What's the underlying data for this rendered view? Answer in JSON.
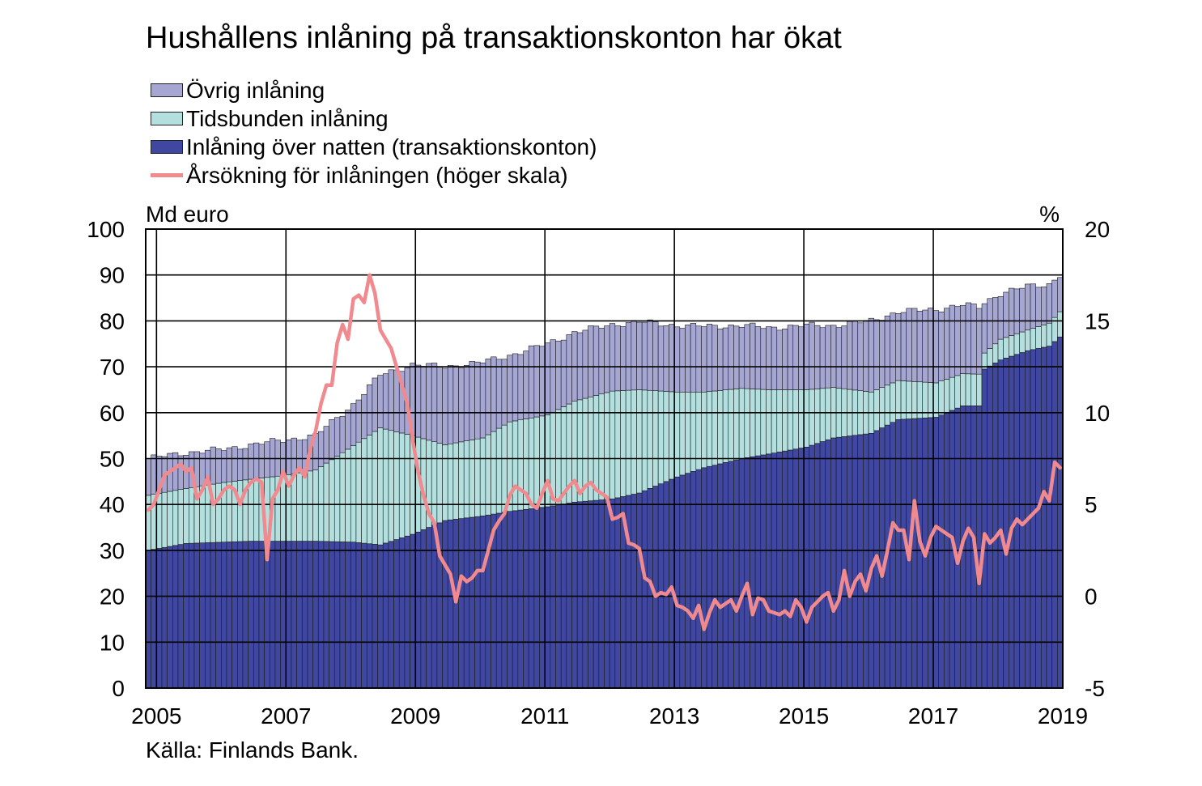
{
  "title": "Hushållens inlåning på transaktionskonton har ökat",
  "source": "Källa: Finlands Bank.",
  "legend": [
    {
      "label": "Övrig inlåning",
      "kind": "bar",
      "color": "#a6a6d2"
    },
    {
      "label": "Tidsbunden inlåning",
      "kind": "bar",
      "color": "#b3e0de"
    },
    {
      "label": "Inlåning över natten (transaktionskonton)",
      "kind": "bar",
      "color": "#3f47a0"
    },
    {
      "label": "Årsökning för inlåningen (höger skala)",
      "kind": "line",
      "color": "#f08a8f"
    }
  ],
  "chart_data": {
    "type": "bar",
    "stacked": true,
    "left_axis": {
      "unit_label": "Md euro",
      "ylim": [
        0,
        100
      ],
      "ticks": [
        "0",
        "10",
        "20",
        "30",
        "40",
        "50",
        "60",
        "70",
        "80",
        "90",
        "100"
      ]
    },
    "right_axis": {
      "unit_label": "%",
      "ylim": [
        -5,
        20
      ],
      "ticks": [
        "-5",
        "0",
        "5",
        "10",
        "15",
        "20"
      ]
    },
    "x_axis": {
      "start": "2004-11",
      "end": "2018-12",
      "tick_labels": [
        "2005",
        "2007",
        "2009",
        "2011",
        "2013",
        "2015",
        "2017",
        "2019"
      ]
    },
    "grid": true,
    "bar_anchors": {
      "months": [
        "2004-11",
        "2005-06",
        "2006-01",
        "2006-06",
        "2006-12",
        "2007-06",
        "2008-01",
        "2008-06",
        "2008-12",
        "2009-06",
        "2010-01",
        "2010-06",
        "2011-01",
        "2011-06",
        "2012-01",
        "2012-06",
        "2013-01",
        "2013-06",
        "2014-01",
        "2014-06",
        "2015-01",
        "2015-06",
        "2016-01",
        "2016-06",
        "2017-01",
        "2017-06",
        "2017-09",
        "2017-10",
        "2018-01",
        "2018-06",
        "2018-10",
        "2018-12"
      ],
      "overnight": [
        30,
        31.5,
        31.8,
        32,
        32,
        32,
        31.8,
        31.2,
        33.5,
        36.5,
        37.5,
        38.5,
        39.5,
        40.5,
        41.2,
        42.5,
        46,
        48,
        50,
        51,
        52.5,
        54.5,
        55.5,
        58.5,
        59,
        61.5,
        61.5,
        69.5,
        71.5,
        73.5,
        74.5,
        76.5
      ],
      "time_deposits": [
        12,
        12,
        13,
        13.5,
        14.3,
        15.5,
        21,
        25.5,
        21.5,
        16.5,
        17,
        19.5,
        20,
        22,
        23.5,
        22.5,
        18.5,
        16.5,
        15.3,
        14,
        12.5,
        11,
        9,
        8.5,
        7.5,
        7,
        6.9,
        3.5,
        4.5,
        4.5,
        5,
        5.5
      ],
      "other": [
        8,
        7.8,
        7.2,
        7.5,
        7.7,
        7.5,
        9,
        11.5,
        15.5,
        17,
        16.5,
        14.5,
        15.5,
        15,
        14.5,
        14.8,
        14.5,
        14.3,
        13.7,
        13.5,
        14,
        13.5,
        15.5,
        15,
        16,
        15,
        14.6,
        11,
        10,
        9.5,
        8.5,
        8
      ]
    },
    "series": [
      {
        "name": "Inlåning över natten (transaktionskonton)",
        "kind": "bar",
        "axis": "left"
      },
      {
        "name": "Tidsbunden inlåning",
        "kind": "bar",
        "axis": "left"
      },
      {
        "name": "Övrig inlåning",
        "kind": "bar",
        "axis": "left"
      },
      {
        "name": "Årsökning för inlåningen (höger skala)",
        "kind": "line",
        "axis": "right",
        "points": [
          [
            "2004-11",
            4.7
          ],
          [
            "2004-12",
            5.0
          ],
          [
            "2005-01",
            5.8
          ],
          [
            "2005-02",
            6.6
          ],
          [
            "2005-03",
            6.8
          ],
          [
            "2005-04",
            7.0
          ],
          [
            "2005-05",
            7.2
          ],
          [
            "2005-06",
            6.8
          ],
          [
            "2005-07",
            7.0
          ],
          [
            "2005-08",
            5.3
          ],
          [
            "2005-09",
            5.8
          ],
          [
            "2005-10",
            6.5
          ],
          [
            "2005-11",
            5.0
          ],
          [
            "2005-12",
            5.3
          ],
          [
            "2006-01",
            5.8
          ],
          [
            "2006-02",
            6.0
          ],
          [
            "2006-03",
            5.8
          ],
          [
            "2006-04",
            5.0
          ],
          [
            "2006-05",
            5.8
          ],
          [
            "2006-06",
            6.2
          ],
          [
            "2006-07",
            6.4
          ],
          [
            "2006-08",
            6.2
          ],
          [
            "2006-09",
            2.0
          ],
          [
            "2006-10",
            5.3
          ],
          [
            "2006-11",
            5.8
          ],
          [
            "2006-12",
            6.8
          ],
          [
            "2007-01",
            6.0
          ],
          [
            "2007-02",
            6.6
          ],
          [
            "2007-03",
            7.0
          ],
          [
            "2007-04",
            6.5
          ],
          [
            "2007-05",
            8.0
          ],
          [
            "2007-06",
            9.0
          ],
          [
            "2007-07",
            10.5
          ],
          [
            "2007-08",
            11.5
          ],
          [
            "2007-09",
            11.5
          ],
          [
            "2007-10",
            13.8
          ],
          [
            "2007-11",
            14.8
          ],
          [
            "2007-12",
            14.0
          ],
          [
            "2008-01",
            16.2
          ],
          [
            "2008-02",
            16.4
          ],
          [
            "2008-03",
            16.0
          ],
          [
            "2008-04",
            17.5
          ],
          [
            "2008-05",
            16.5
          ],
          [
            "2008-06",
            14.5
          ],
          [
            "2008-07",
            14.0
          ],
          [
            "2008-08",
            13.5
          ],
          [
            "2008-09",
            12.5
          ],
          [
            "2008-10",
            11.5
          ],
          [
            "2008-11",
            10.5
          ],
          [
            "2008-12",
            8.5
          ],
          [
            "2009-01",
            6.8
          ],
          [
            "2009-02",
            5.5
          ],
          [
            "2009-03",
            4.5
          ],
          [
            "2009-04",
            4.0
          ],
          [
            "2009-05",
            2.2
          ],
          [
            "2009-06",
            1.7
          ],
          [
            "2009-07",
            1.2
          ],
          [
            "2009-08",
            -0.3
          ],
          [
            "2009-09",
            1.1
          ],
          [
            "2009-10",
            0.8
          ],
          [
            "2009-11",
            1.0
          ],
          [
            "2009-12",
            1.4
          ],
          [
            "2010-01",
            1.4
          ],
          [
            "2010-02",
            2.5
          ],
          [
            "2010-03",
            3.6
          ],
          [
            "2010-04",
            4.1
          ],
          [
            "2010-05",
            4.5
          ],
          [
            "2010-06",
            5.5
          ],
          [
            "2010-07",
            6.0
          ],
          [
            "2010-08",
            5.8
          ],
          [
            "2010-09",
            5.6
          ],
          [
            "2010-10",
            5.0
          ],
          [
            "2010-11",
            4.8
          ],
          [
            "2010-12",
            5.6
          ],
          [
            "2011-01",
            6.3
          ],
          [
            "2011-02",
            5.3
          ],
          [
            "2011-03",
            5.2
          ],
          [
            "2011-04",
            5.6
          ],
          [
            "2011-05",
            6.0
          ],
          [
            "2011-06",
            6.3
          ],
          [
            "2011-07",
            5.6
          ],
          [
            "2011-08",
            6.0
          ],
          [
            "2011-09",
            6.2
          ],
          [
            "2011-10",
            5.8
          ],
          [
            "2011-11",
            5.6
          ],
          [
            "2011-12",
            5.4
          ],
          [
            "2012-01",
            4.2
          ],
          [
            "2012-02",
            4.3
          ],
          [
            "2012-03",
            4.5
          ],
          [
            "2012-04",
            2.9
          ],
          [
            "2012-05",
            2.8
          ],
          [
            "2012-06",
            2.6
          ],
          [
            "2012-07",
            1.0
          ],
          [
            "2012-08",
            0.8
          ],
          [
            "2012-09",
            0.0
          ],
          [
            "2012-10",
            0.2
          ],
          [
            "2012-11",
            0.1
          ],
          [
            "2012-12",
            0.5
          ],
          [
            "2013-01",
            -0.5
          ],
          [
            "2013-02",
            -0.6
          ],
          [
            "2013-03",
            -0.8
          ],
          [
            "2013-04",
            -1.2
          ],
          [
            "2013-05",
            -0.5
          ],
          [
            "2013-06",
            -1.8
          ],
          [
            "2013-07",
            -0.9
          ],
          [
            "2013-08",
            -0.2
          ],
          [
            "2013-09",
            -0.6
          ],
          [
            "2013-10",
            -0.4
          ],
          [
            "2013-11",
            -0.2
          ],
          [
            "2013-12",
            -0.8
          ],
          [
            "2014-01",
            0.0
          ],
          [
            "2014-02",
            0.7
          ],
          [
            "2014-03",
            -1.0
          ],
          [
            "2014-04",
            -0.1
          ],
          [
            "2014-05",
            -0.2
          ],
          [
            "2014-06",
            -0.8
          ],
          [
            "2014-07",
            -0.9
          ],
          [
            "2014-08",
            -1.0
          ],
          [
            "2014-09",
            -0.8
          ],
          [
            "2014-10",
            -1.1
          ],
          [
            "2014-11",
            -0.2
          ],
          [
            "2014-12",
            -0.6
          ],
          [
            "2015-01",
            -1.4
          ],
          [
            "2015-02",
            -0.6
          ],
          [
            "2015-03",
            -0.3
          ],
          [
            "2015-04",
            0.0
          ],
          [
            "2015-05",
            0.2
          ],
          [
            "2015-06",
            -0.8
          ],
          [
            "2015-07",
            -0.2
          ],
          [
            "2015-08",
            1.4
          ],
          [
            "2015-09",
            0.0
          ],
          [
            "2015-10",
            0.8
          ],
          [
            "2015-11",
            1.2
          ],
          [
            "2015-12",
            0.3
          ],
          [
            "2016-01",
            1.5
          ],
          [
            "2016-02",
            2.2
          ],
          [
            "2016-03",
            1.1
          ],
          [
            "2016-04",
            2.5
          ],
          [
            "2016-05",
            4.0
          ],
          [
            "2016-06",
            3.6
          ],
          [
            "2016-07",
            3.6
          ],
          [
            "2016-08",
            2.0
          ],
          [
            "2016-09",
            5.2
          ],
          [
            "2016-10",
            3.0
          ],
          [
            "2016-11",
            2.2
          ],
          [
            "2016-12",
            3.2
          ],
          [
            "2017-01",
            3.8
          ],
          [
            "2017-02",
            3.6
          ],
          [
            "2017-03",
            3.4
          ],
          [
            "2017-04",
            3.2
          ],
          [
            "2017-05",
            1.8
          ],
          [
            "2017-06",
            3.0
          ],
          [
            "2017-07",
            3.7
          ],
          [
            "2017-08",
            3.2
          ],
          [
            "2017-09",
            0.7
          ],
          [
            "2017-10",
            3.4
          ],
          [
            "2017-11",
            2.9
          ],
          [
            "2017-12",
            3.2
          ],
          [
            "2018-01",
            3.6
          ],
          [
            "2018-02",
            2.3
          ],
          [
            "2018-03",
            3.7
          ],
          [
            "2018-04",
            4.2
          ],
          [
            "2018-05",
            3.9
          ],
          [
            "2018-06",
            4.2
          ],
          [
            "2018-07",
            4.5
          ],
          [
            "2018-08",
            4.8
          ],
          [
            "2018-09",
            5.7
          ],
          [
            "2018-10",
            5.2
          ],
          [
            "2018-11",
            7.3
          ],
          [
            "2018-12",
            7.0
          ]
        ]
      }
    ]
  }
}
